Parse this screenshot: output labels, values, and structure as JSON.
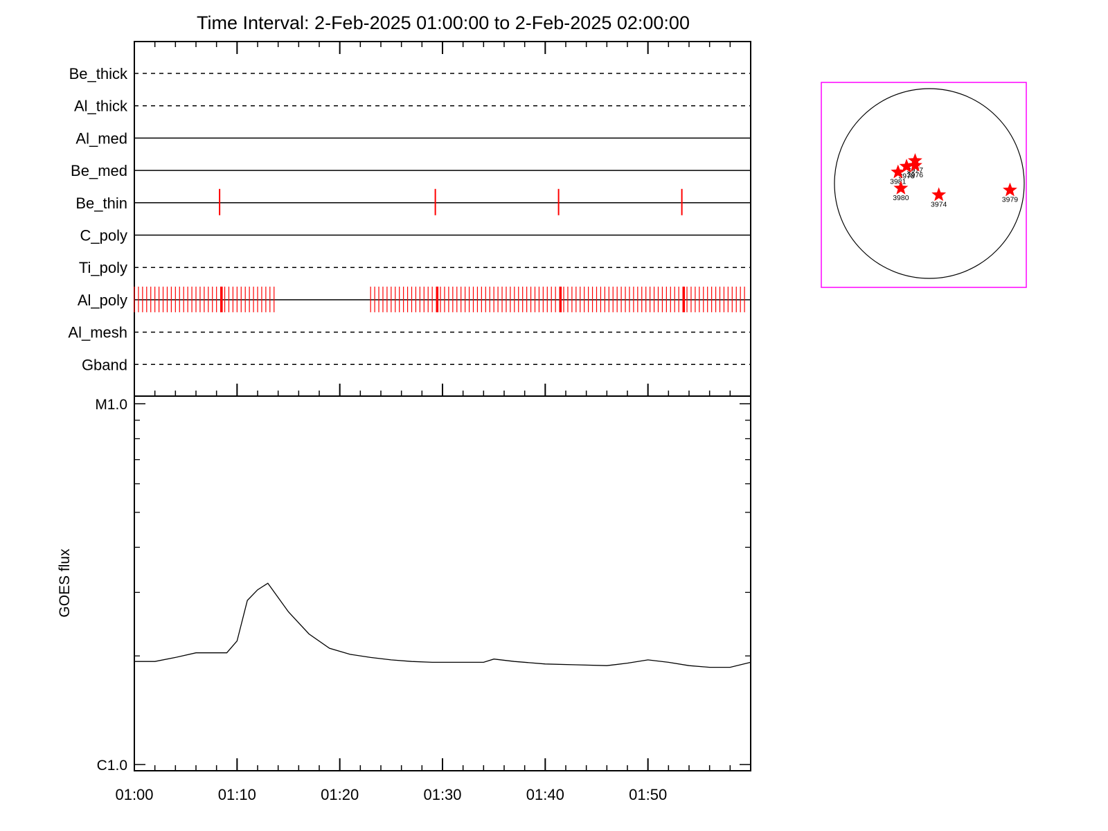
{
  "title": "Time Interval:  2-Feb-2025 01:00:00 to  2-Feb-2025 02:00:00",
  "chart_data": [
    {
      "type": "line",
      "panel": "filter-timeline",
      "x_range": [
        "01:00",
        "02:00"
      ],
      "filters": [
        {
          "name": "Be_thick",
          "style": "dashed"
        },
        {
          "name": "Al_thick",
          "style": "dashed"
        },
        {
          "name": "Al_med",
          "style": "solid"
        },
        {
          "name": "Be_med",
          "style": "solid"
        },
        {
          "name": "Be_thin",
          "style": "solid"
        },
        {
          "name": "C_poly",
          "style": "solid"
        },
        {
          "name": "Ti_poly",
          "style": "dashed"
        },
        {
          "name": "Al_poly",
          "style": "solid"
        },
        {
          "name": "Al_mesh",
          "style": "dashed"
        },
        {
          "name": "Gband",
          "style": "dashed"
        }
      ],
      "exposures": {
        "Be_thin": [
          8.3,
          29.3,
          41.3,
          53.3
        ],
        "Al_poly_dense_segments": [
          [
            0.0,
            13.6
          ],
          [
            23.0,
            59.7
          ]
        ],
        "Al_poly_spacing_min": 0.4,
        "Al_poly_major": [
          8.5,
          29.5,
          41.5,
          53.5
        ]
      },
      "marker_color": "#ff0000"
    },
    {
      "type": "line",
      "panel": "goes-flux",
      "ylabel": "GOES flux",
      "ytick_labels": [
        "M1.0",
        "C1.0"
      ],
      "ylog": true,
      "ylim": [
        1e-06,
        1e-05
      ],
      "xticks": [
        "01:00",
        "01:10",
        "01:20",
        "01:30",
        "01:40",
        "01:50"
      ],
      "x_minutes": [
        0,
        2,
        4,
        6,
        8,
        9,
        10,
        11,
        12,
        13,
        15,
        17,
        19,
        21,
        23,
        25,
        27,
        29,
        31,
        34,
        35,
        37,
        40,
        43,
        46,
        48,
        50,
        52,
        54,
        56,
        58,
        60
      ],
      "values_c": [
        1.93,
        1.93,
        1.98,
        2.04,
        2.04,
        2.04,
        2.2,
        2.85,
        3.05,
        3.18,
        2.65,
        2.3,
        2.1,
        2.02,
        1.98,
        1.95,
        1.93,
        1.92,
        1.92,
        1.92,
        1.96,
        1.93,
        1.9,
        1.89,
        1.88,
        1.91,
        1.95,
        1.92,
        1.88,
        1.86,
        1.86,
        1.92
      ]
    }
  ],
  "sun_map": {
    "border_color": "#ff00ff",
    "disk_color": "#000000",
    "star_color": "#ff0000",
    "regions": [
      {
        "label": "3977",
        "dx": -0.15,
        "dy": -0.24
      },
      {
        "label": "3976",
        "dx": -0.15,
        "dy": -0.19
      },
      {
        "label": "3978",
        "dx": -0.24,
        "dy": -0.18
      },
      {
        "label": "3981",
        "dx": -0.33,
        "dy": -0.12
      },
      {
        "label": "3980",
        "dx": -0.3,
        "dy": 0.05
      },
      {
        "label": "3974",
        "dx": 0.1,
        "dy": 0.12
      },
      {
        "label": "3979",
        "dx": 0.85,
        "dy": 0.07
      }
    ]
  }
}
